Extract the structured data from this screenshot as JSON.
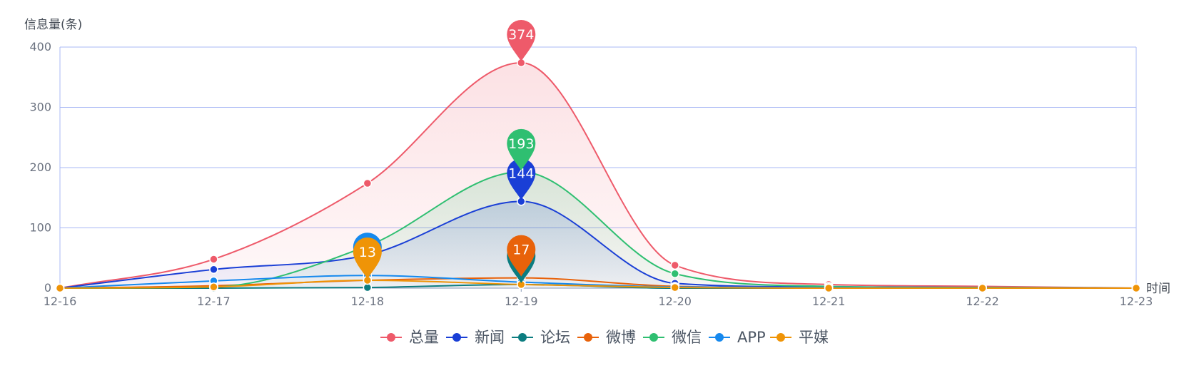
{
  "chart_data": {
    "type": "line",
    "ylabel": "信息量(条)",
    "xlabel": "时间",
    "ylim": [
      0,
      400
    ],
    "yticks": [
      "0",
      "100",
      "200",
      "300",
      "400"
    ],
    "x": [
      "12-16",
      "12-17",
      "12-18",
      "12-19",
      "12-20",
      "12-21",
      "12-22",
      "12-23"
    ],
    "grid": true,
    "legend_position": "bottom-center",
    "smooth": true,
    "series": [
      {
        "name": "总量",
        "color": "#ee5a6a",
        "area": true,
        "values": [
          0,
          48,
          174,
          374,
          38,
          6,
          3,
          0
        ],
        "markers": [
          {
            "index": 3,
            "label": "374"
          }
        ]
      },
      {
        "name": "新闻",
        "color": "#1a3fd6",
        "area": true,
        "values": [
          0,
          31,
          55,
          144,
          8,
          2,
          1,
          0
        ],
        "markers": [
          {
            "index": 3,
            "label": "144"
          }
        ]
      },
      {
        "name": "论坛",
        "color": "#0c7d80",
        "area": false,
        "values": [
          0,
          0,
          1,
          6,
          0,
          0,
          0,
          0
        ],
        "markers": [
          {
            "index": 3,
            "label": ""
          }
        ]
      },
      {
        "name": "微博",
        "color": "#e8620a",
        "area": false,
        "values": [
          0,
          4,
          13,
          17,
          3,
          1,
          0,
          0
        ],
        "markers": [
          {
            "index": 3,
            "label": "17"
          }
        ]
      },
      {
        "name": "微信",
        "color": "#2fbf71",
        "area": true,
        "values": [
          0,
          2,
          70,
          193,
          24,
          3,
          1,
          0
        ],
        "markers": [
          {
            "index": 3,
            "label": "193"
          }
        ]
      },
      {
        "name": "APP",
        "color": "#1689ee",
        "area": false,
        "values": [
          0,
          12,
          21,
          10,
          2,
          1,
          0,
          0
        ],
        "markers": [
          {
            "index": 2,
            "label": ""
          }
        ]
      },
      {
        "name": "平媒",
        "color": "#ef9407",
        "area": false,
        "values": [
          0,
          2,
          13,
          6,
          1,
          0,
          0,
          0
        ],
        "markers": [
          {
            "index": 2,
            "label": "13"
          }
        ]
      }
    ]
  }
}
